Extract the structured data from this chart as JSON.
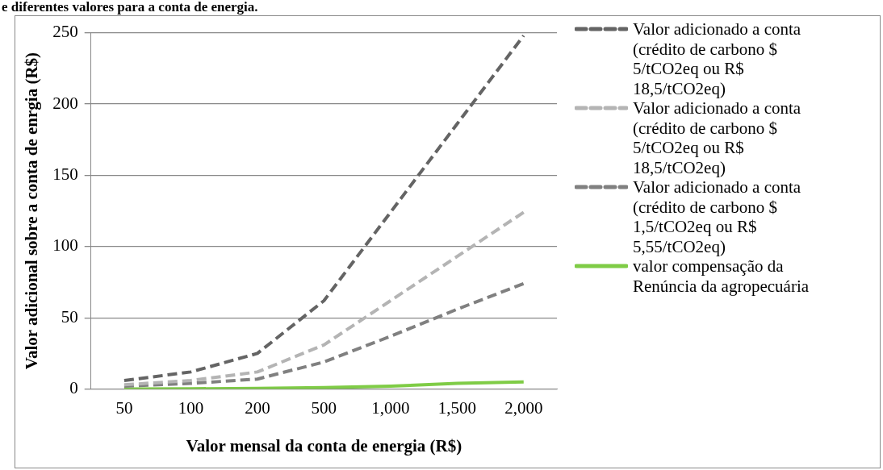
{
  "chart_data": {
    "type": "line",
    "title": "e diferentes valores para a conta de energia.",
    "xlabel": "Valor mensal da conta de energia (R$)",
    "ylabel": "Valor adicional sobre a conta de enrgia (R$)",
    "categories": [
      "50",
      "100",
      "200",
      "500",
      "1,000",
      "1,500",
      "2,000"
    ],
    "series": [
      {
        "name": "Valor adicionado a conta (crédito de carbono $ 5/tCO2eq ou R$ 18,5/tCO2eq)",
        "color": "#646464",
        "line_style": "dashed",
        "values": [
          6,
          12,
          25,
          62,
          124,
          186,
          248
        ]
      },
      {
        "name": "Valor adicionado a conta (crédito de carbono $ 5/tCO2eq ou R$ 18,5/tCO2eq)",
        "color": "#b4b4b4",
        "line_style": "dashed",
        "values": [
          3,
          6,
          12,
          31,
          62,
          93,
          124
        ]
      },
      {
        "name": "Valor adicionado a conta (crédito de carbono $ 1,5/tCO2eq ou R$ 5,55/tCO2eq)",
        "color": "#808080",
        "line_style": "dashed",
        "values": [
          2,
          4,
          7,
          19,
          37,
          56,
          74
        ]
      },
      {
        "name": "valor compensação da Renúncia da agropecuária",
        "color": "#7fcc46",
        "line_style": "solid",
        "values": [
          0.1,
          0.2,
          0.5,
          1,
          2,
          4,
          5
        ]
      }
    ],
    "ylim": [
      0,
      250
    ],
    "yticks": [
      0,
      50,
      100,
      150,
      200,
      250
    ],
    "grid": "y",
    "legend": "right",
    "marker": "none"
  }
}
